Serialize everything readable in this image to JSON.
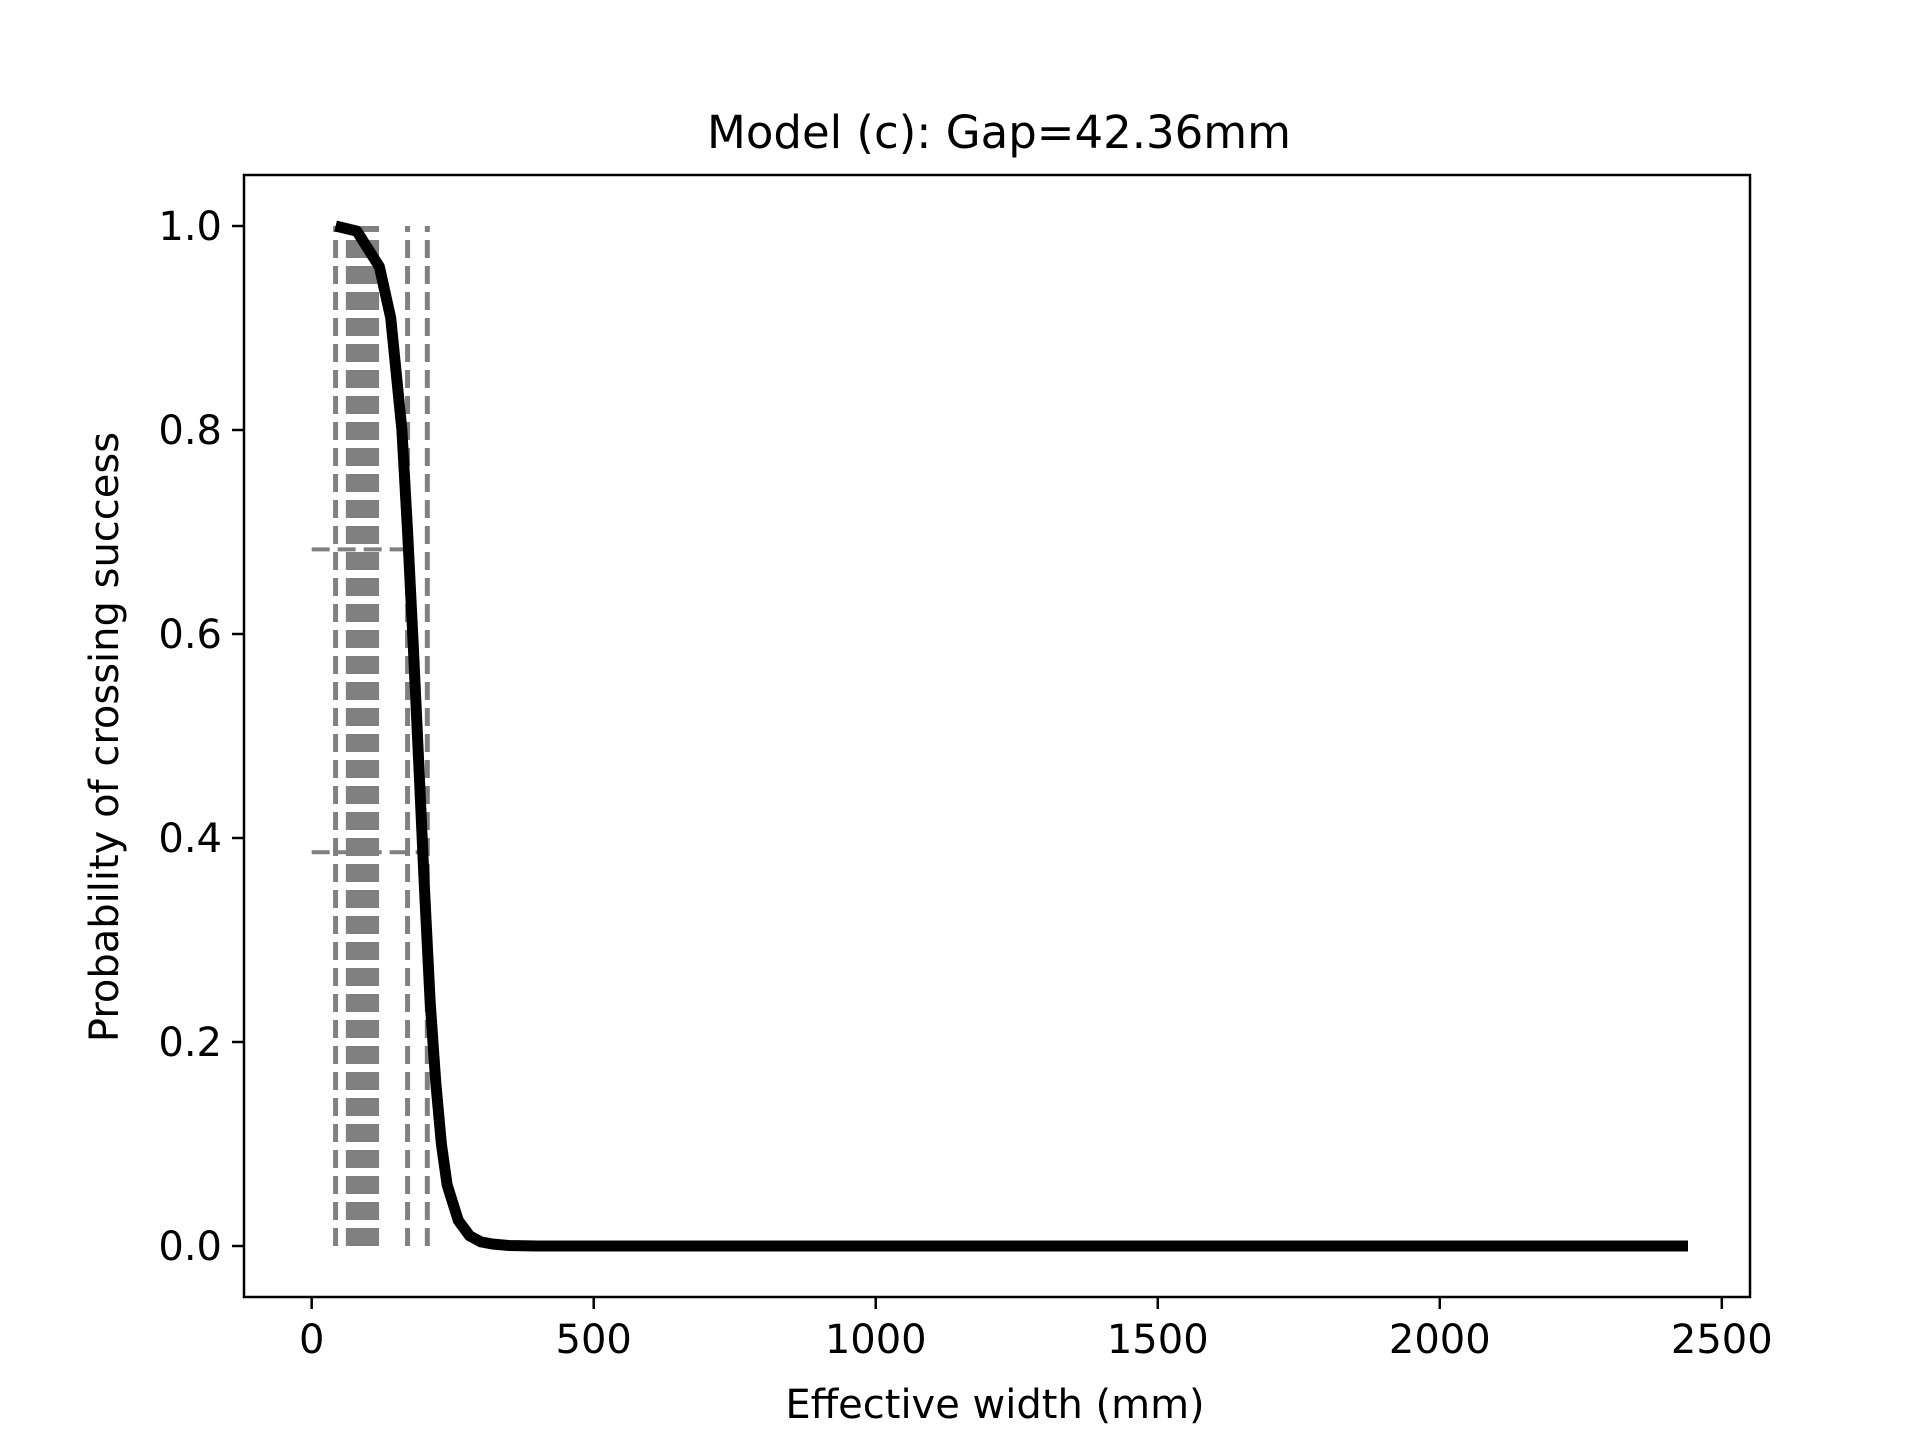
{
  "chart_data": {
    "type": "line",
    "title": "Model (c): Gap=42.36mm",
    "xlabel": "Effective width (mm)",
    "ylabel": "Probability of crossing success",
    "xlim": [
      -120,
      2550
    ],
    "ylim": [
      -0.05,
      1.05
    ],
    "xticks": [
      0,
      500,
      1000,
      1500,
      2000,
      2500
    ],
    "xtick_labels": [
      "0",
      "500",
      "1000",
      "1500",
      "2000",
      "2500"
    ],
    "yticks": [
      0.0,
      0.2,
      0.4,
      0.6,
      0.8,
      1.0
    ],
    "ytick_labels": [
      "0.0",
      "0.2",
      "0.4",
      "0.6",
      "0.8",
      "1.0"
    ],
    "grid": false,
    "series": [
      {
        "style": "solid",
        "color": "#000000",
        "x": [
          42.36,
          80,
          120,
          140,
          160,
          170,
          180,
          190,
          200,
          210,
          220,
          230,
          240,
          260,
          280,
          300,
          320,
          350,
          400,
          600,
          1000,
          1500,
          2000,
          2440
        ],
        "y": [
          1.0,
          0.995,
          0.96,
          0.91,
          0.8,
          0.7,
          0.59,
          0.47,
          0.35,
          0.24,
          0.16,
          0.1,
          0.06,
          0.025,
          0.01,
          0.004,
          0.002,
          0.0005,
          0.0,
          0.0,
          0.0,
          0.0,
          0.0,
          0.0
        ]
      }
    ],
    "reference_lines": {
      "color": "#808080",
      "style": "dashed",
      "vertical_x": [
        42.36,
        65,
        70,
        75,
        80,
        85,
        90,
        95,
        100,
        105,
        110,
        115,
        170,
        205
      ],
      "vertical_from_y": 0.0,
      "vertical_to_y": 1.0,
      "horizontal": [
        {
          "y": 0.683,
          "x_from": 0,
          "x_to": 170
        },
        {
          "y": 0.386,
          "x_from": 0,
          "x_to": 205
        }
      ]
    }
  }
}
